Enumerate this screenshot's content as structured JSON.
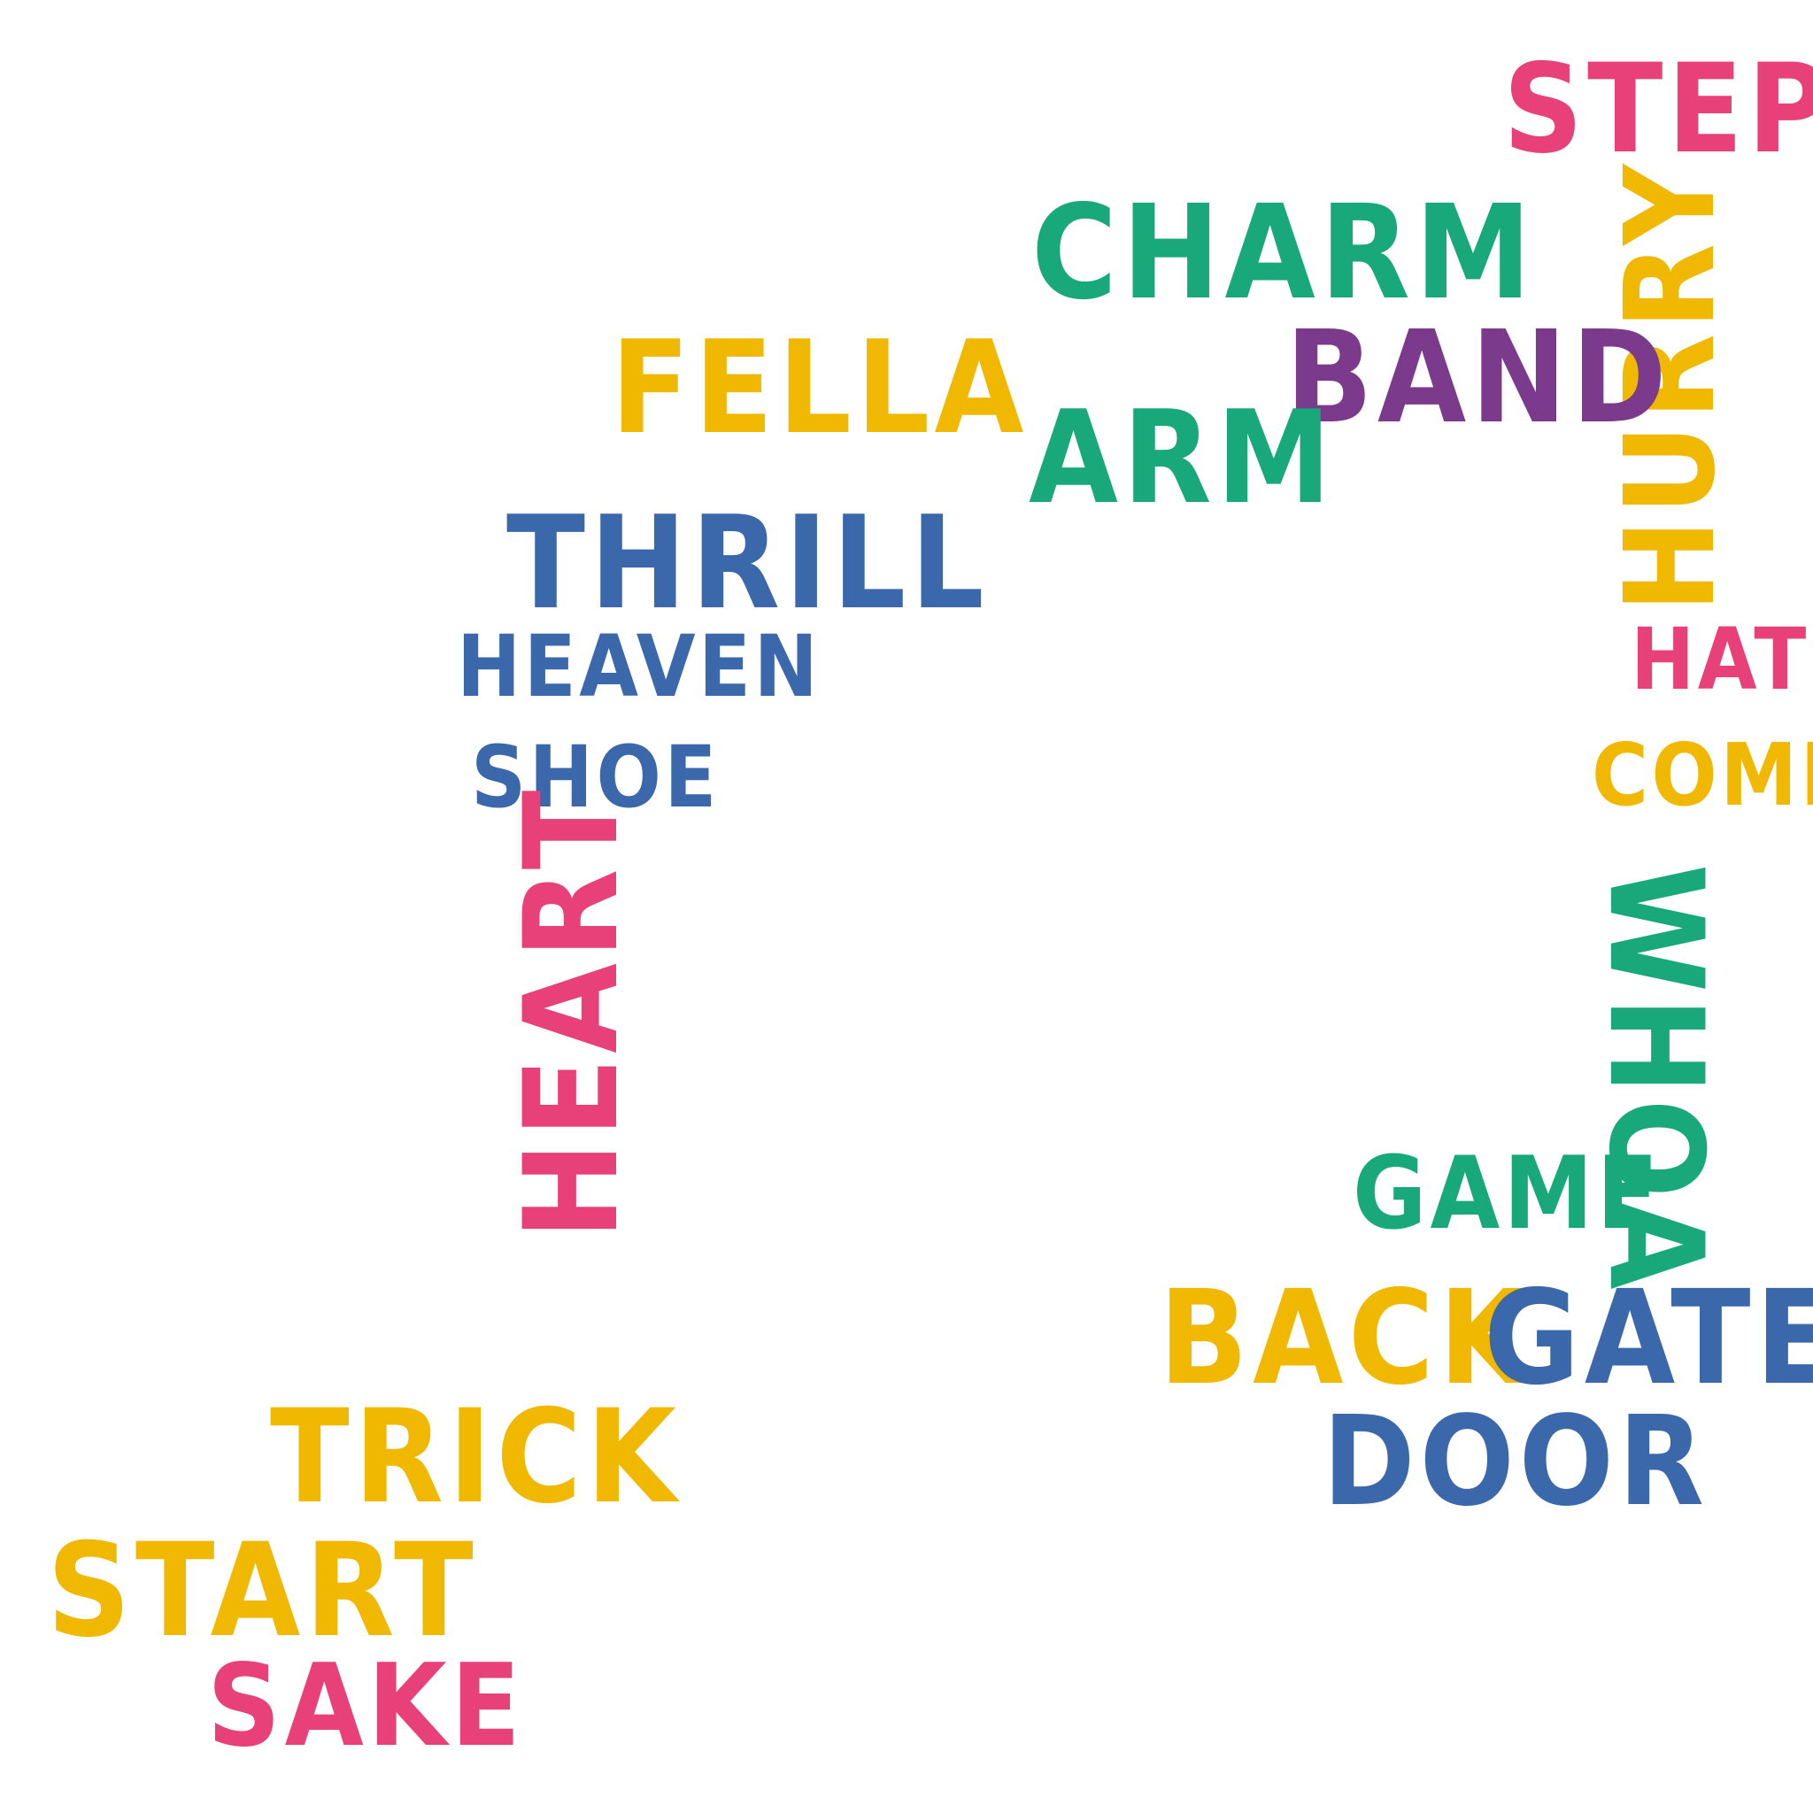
{
  "words": {
    "step": {
      "text": "STEP",
      "color": "#e84078"
    },
    "charm": {
      "text": "CHARM",
      "color": "#18a87a"
    },
    "hurry": {
      "text": "HURRY",
      "color": "#f0b800"
    },
    "fella": {
      "text": "FELLA",
      "color": "#f0b800"
    },
    "band": {
      "text": "BAND",
      "color": "#7b3a8c"
    },
    "arm": {
      "text": "ARM",
      "color": "#18a87a"
    },
    "thrill": {
      "text": "THRILL",
      "color": "#3a68ab"
    },
    "heaven": {
      "text": "HEAVEN",
      "color": "#3a68ab"
    },
    "hat": {
      "text": "HAT",
      "color": "#e84078"
    },
    "shoe": {
      "text": "SHOE",
      "color": "#3a68ab"
    },
    "come": {
      "text": "COME",
      "color": "#f0b800"
    },
    "heart": {
      "text": "HEART",
      "color": "#e84078"
    },
    "whoa": {
      "text": "WHOA",
      "color": "#18a87a"
    },
    "game": {
      "text": "GAME",
      "color": "#18a87a"
    },
    "back": {
      "text": "BACK",
      "color": "#f0b800"
    },
    "gate": {
      "text": "GATE",
      "color": "#3a68ab"
    },
    "door": {
      "text": "DOOR",
      "color": "#3a68ab"
    },
    "trick": {
      "text": "TRICK",
      "color": "#f0b800"
    },
    "start": {
      "text": "START",
      "color": "#f0b800"
    },
    "sake": {
      "text": "SAKE",
      "color": "#e84078"
    }
  }
}
